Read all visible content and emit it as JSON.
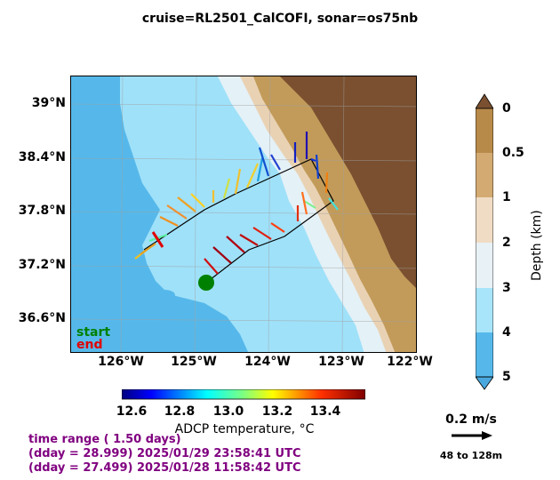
{
  "title": "cruise=RL2501_CalCOFI,   sonar=os75nb",
  "map": {
    "lat_labels": [
      "39°N",
      "38.4°N",
      "37.8°N",
      "37.2°N",
      "36.6°N"
    ],
    "lon_labels": [
      "126°W",
      "125°W",
      "124°W",
      "123°W",
      "122°W"
    ],
    "legend": {
      "start": "start",
      "end": "end"
    },
    "colors": {
      "ocean_deep": "#56b8ea",
      "ocean_mid": "#9fe1f9",
      "shelf": "#e4f1f7",
      "land_low": "#c29b5a",
      "land_high": "#7a5030",
      "start_marker": "#008000",
      "end_marker": "#e00000"
    }
  },
  "depth_colorbar": {
    "ticks": [
      "0",
      "0.5",
      "1",
      "2",
      "3",
      "4",
      "5"
    ],
    "label": "Depth (km)",
    "colors": [
      "#b88a4a",
      "#d3aa72",
      "#f0dcc4",
      "#e8f2f6",
      "#a8e4fa",
      "#56b8ea"
    ]
  },
  "temp_colorbar": {
    "ticks": [
      "12.6",
      "12.8",
      "13.0",
      "13.2",
      "13.4"
    ],
    "label": "ADCP temperature, °C"
  },
  "info": {
    "line1": "time range ( 1.50 days)",
    "line2": "(dday = 28.999) 2025/01/29 23:58:41 UTC",
    "line3": "(dday = 27.499) 2025/01/28 11:58:42 UTC"
  },
  "scale": {
    "speed": "0.2 m/s",
    "depth_range": "48 to 128m"
  }
}
